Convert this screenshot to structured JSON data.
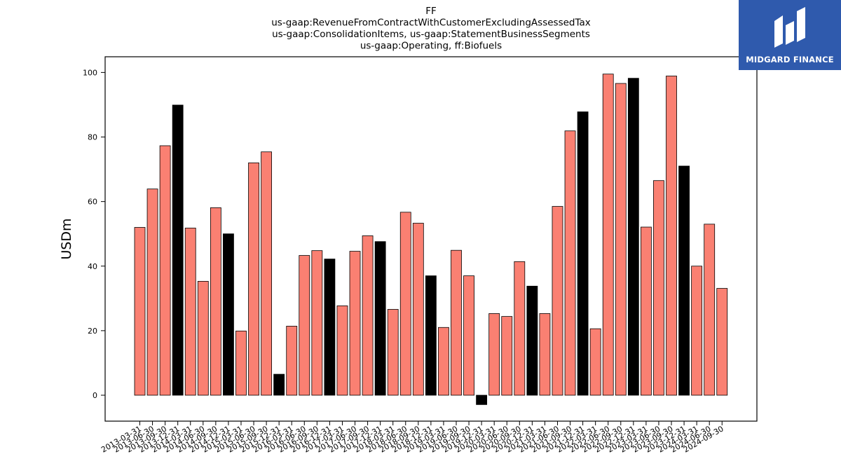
{
  "chart_data": {
    "type": "bar",
    "title_lines": [
      "FF",
      "us-gaap:RevenueFromContractWithCustomerExcludingAssessedTax",
      "us-gaap:ConsolidationItems, us-gaap:StatementBusinessSegments",
      "us-gaap:Operating, ff:Biofuels"
    ],
    "xlabel": "",
    "ylabel": "USDm",
    "ylim": [
      -8,
      105
    ],
    "yticks": [
      0,
      20,
      40,
      60,
      80,
      100
    ],
    "grid": false,
    "colors": {
      "quarter": "#fa8072",
      "year_end": "#000000",
      "edge": "#000000"
    },
    "categories": [
      "2013-03-31",
      "2013-06-30",
      "2013-09-30",
      "2013-12-31",
      "2014-03-31",
      "2014-06-30",
      "2014-09-30",
      "2014-12-31",
      "2015-03-31",
      "2015-06-30",
      "2015-09-30",
      "2015-12-31",
      "2016-03-31",
      "2016-06-30",
      "2016-09-30",
      "2016-12-31",
      "2017-03-31",
      "2017-06-30",
      "2017-09-30",
      "2017-12-31",
      "2018-03-31",
      "2018-06-30",
      "2018-09-30",
      "2018-12-31",
      "2019-03-31",
      "2019-06-30",
      "2019-09-30",
      "2019-12-31",
      "2020-03-31",
      "2020-06-30",
      "2020-09-30",
      "2020-12-31",
      "2021-03-31",
      "2021-06-30",
      "2021-09-30",
      "2021-12-31",
      "2022-03-31",
      "2022-06-30",
      "2022-09-30",
      "2022-12-31",
      "2023-03-31",
      "2023-06-30",
      "2023-09-30",
      "2023-12-31",
      "2024-03-31",
      "2024-06-30",
      "2024-09-30"
    ],
    "values": [
      52.0,
      63.9,
      77.3,
      89.9,
      51.8,
      35.3,
      58.1,
      50.0,
      19.9,
      72.0,
      75.4,
      6.5,
      21.4,
      43.3,
      44.8,
      42.2,
      27.7,
      44.6,
      49.4,
      47.6,
      26.6,
      56.7,
      53.3,
      37.0,
      21.0,
      44.9,
      37.0,
      -2.9,
      25.3,
      24.4,
      41.4,
      33.8,
      25.3,
      58.5,
      81.9,
      87.8,
      20.6,
      99.5,
      96.6,
      98.2,
      52.1,
      66.5,
      98.9,
      71.0,
      40.0,
      53.0,
      33.1
    ],
    "year_end_flags": [
      false,
      false,
      false,
      true,
      false,
      false,
      false,
      true,
      false,
      false,
      false,
      true,
      false,
      false,
      false,
      true,
      false,
      false,
      false,
      true,
      false,
      false,
      false,
      true,
      false,
      false,
      false,
      true,
      false,
      false,
      false,
      true,
      false,
      false,
      false,
      true,
      false,
      false,
      false,
      true,
      false,
      false,
      false,
      true,
      false,
      false,
      false
    ]
  },
  "logo": {
    "text": "MIDGARD FINANCE",
    "background": "#2f5aad"
  }
}
